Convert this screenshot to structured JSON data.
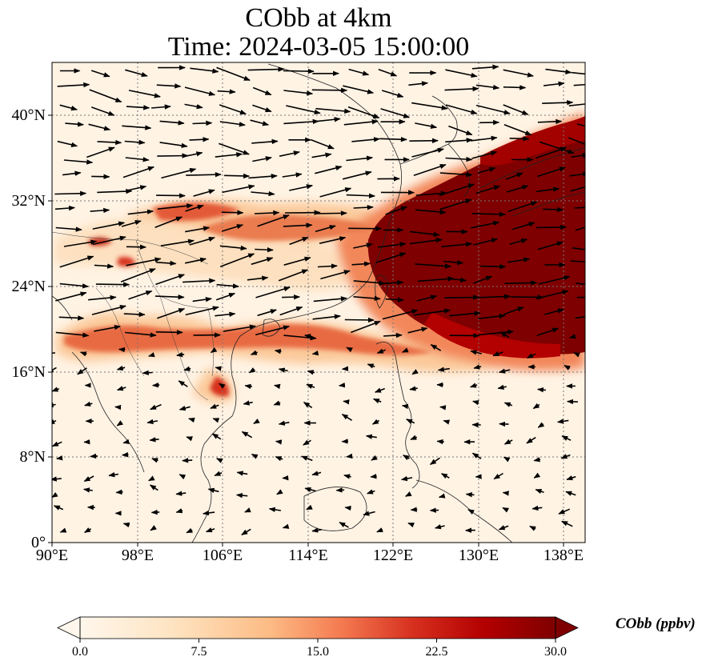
{
  "title": {
    "line1": "CObb at 4km",
    "line2": "Time: 2024-03-05 15:00:00"
  },
  "map": {
    "lat_ticks": [
      "40°N",
      "32°N",
      "24°N",
      "16°N",
      "8°N",
      "0°"
    ],
    "lon_ticks": [
      "90°E",
      "98°E",
      "106°E",
      "114°E",
      "122°E",
      "130°E",
      "138°E"
    ],
    "gridlines": true,
    "field": "CObb concentration, plume over East China Sea and NW Pacific",
    "colors": {
      "background": "#fff5e8",
      "low": "#fde6c8",
      "mid": "#f6a46c",
      "high": "#d7301f",
      "max": "#7f0000"
    }
  },
  "colorbar": {
    "label": "CObb (ppbv)",
    "ticks": [
      "0.0",
      "7.5",
      "15.0",
      "22.5",
      "30.0"
    ],
    "min": 0,
    "max": 30,
    "colormap": "OrRd",
    "extend": "both"
  }
}
